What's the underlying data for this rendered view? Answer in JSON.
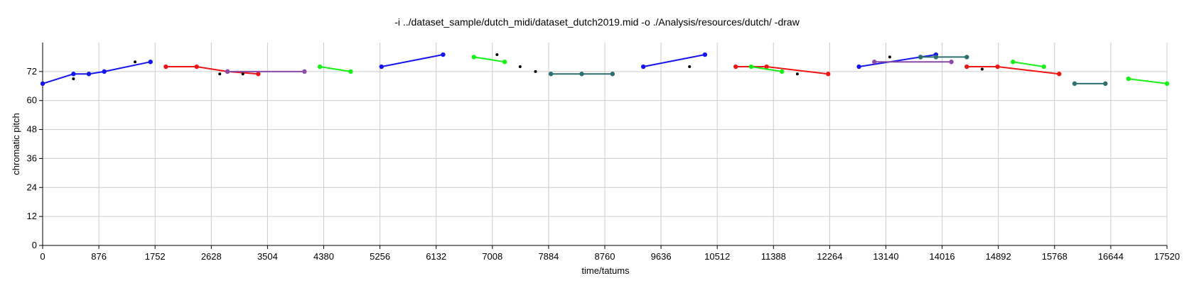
{
  "chart_data": {
    "type": "line",
    "title": "-i ../dataset_sample/dutch_midi/dataset_dutch2019.mid -o ./Analysis/resources/dutch/ -draw",
    "xlabel": "time/tatums",
    "ylabel": "chromatic pitch",
    "xlim": [
      0,
      17520
    ],
    "ylim": [
      0,
      84
    ],
    "xticks": [
      0,
      876,
      1752,
      2628,
      3504,
      4380,
      5256,
      6132,
      7008,
      7884,
      8760,
      9636,
      10512,
      11388,
      12264,
      13140,
      14016,
      14892,
      15768,
      16644,
      17520
    ],
    "yticks": [
      0,
      12,
      24,
      36,
      48,
      60,
      72
    ],
    "grid": true,
    "colors": {
      "blue": "#1515f0",
      "red": "#f01515",
      "green": "#15f015",
      "purple": "#8a4aa8",
      "teal": "#2f6f6f",
      "black": "#000000"
    },
    "series": [
      {
        "color": "blue",
        "x": [
          0,
          480,
          720,
          960,
          1680
        ],
        "y": [
          67,
          71,
          71,
          72,
          76
        ]
      },
      {
        "color": "red",
        "x": [
          1920,
          2400,
          2880,
          3360
        ],
        "y": [
          74,
          74,
          72,
          71
        ]
      },
      {
        "color": "purple",
        "x": [
          2880,
          4080
        ],
        "y": [
          72,
          72
        ]
      },
      {
        "color": "green",
        "x": [
          4320,
          4800
        ],
        "y": [
          74,
          72
        ]
      },
      {
        "color": "blue",
        "x": [
          5280,
          6240
        ],
        "y": [
          74,
          79
        ]
      },
      {
        "color": "green",
        "x": [
          6720,
          7200
        ],
        "y": [
          78,
          76
        ]
      },
      {
        "color": "teal",
        "x": [
          7920,
          8400,
          8880
        ],
        "y": [
          71,
          71,
          71
        ]
      },
      {
        "color": "blue",
        "x": [
          9360,
          10320
        ],
        "y": [
          74,
          79
        ]
      },
      {
        "color": "red",
        "x": [
          10800,
          11280,
          12240
        ],
        "y": [
          74,
          74,
          71
        ]
      },
      {
        "color": "green",
        "x": [
          11040,
          11520
        ],
        "y": [
          74,
          72
        ]
      },
      {
        "color": "blue",
        "x": [
          12720,
          13680,
          13920
        ],
        "y": [
          74,
          78,
          79
        ]
      },
      {
        "color": "purple",
        "x": [
          12960,
          14160
        ],
        "y": [
          76,
          76
        ]
      },
      {
        "color": "teal",
        "x": [
          13680,
          13920,
          14400
        ],
        "y": [
          78,
          78,
          78
        ]
      },
      {
        "color": "red",
        "x": [
          14400,
          14880,
          15840
        ],
        "y": [
          74,
          74,
          71
        ]
      },
      {
        "color": "green",
        "x": [
          15120,
          15600
        ],
        "y": [
          76,
          74
        ]
      },
      {
        "color": "teal",
        "x": [
          16080,
          16560
        ],
        "y": [
          67,
          67
        ]
      },
      {
        "color": "green",
        "x": [
          16920,
          17520
        ],
        "y": [
          69,
          67
        ]
      }
    ],
    "points": [
      {
        "x": 480,
        "y": 69
      },
      {
        "x": 1440,
        "y": 76
      },
      {
        "x": 2760,
        "y": 71
      },
      {
        "x": 3120,
        "y": 71
      },
      {
        "x": 7080,
        "y": 79
      },
      {
        "x": 7440,
        "y": 74
      },
      {
        "x": 7680,
        "y": 72
      },
      {
        "x": 10080,
        "y": 74
      },
      {
        "x": 11760,
        "y": 71
      },
      {
        "x": 13200,
        "y": 78
      },
      {
        "x": 14640,
        "y": 73
      }
    ]
  }
}
